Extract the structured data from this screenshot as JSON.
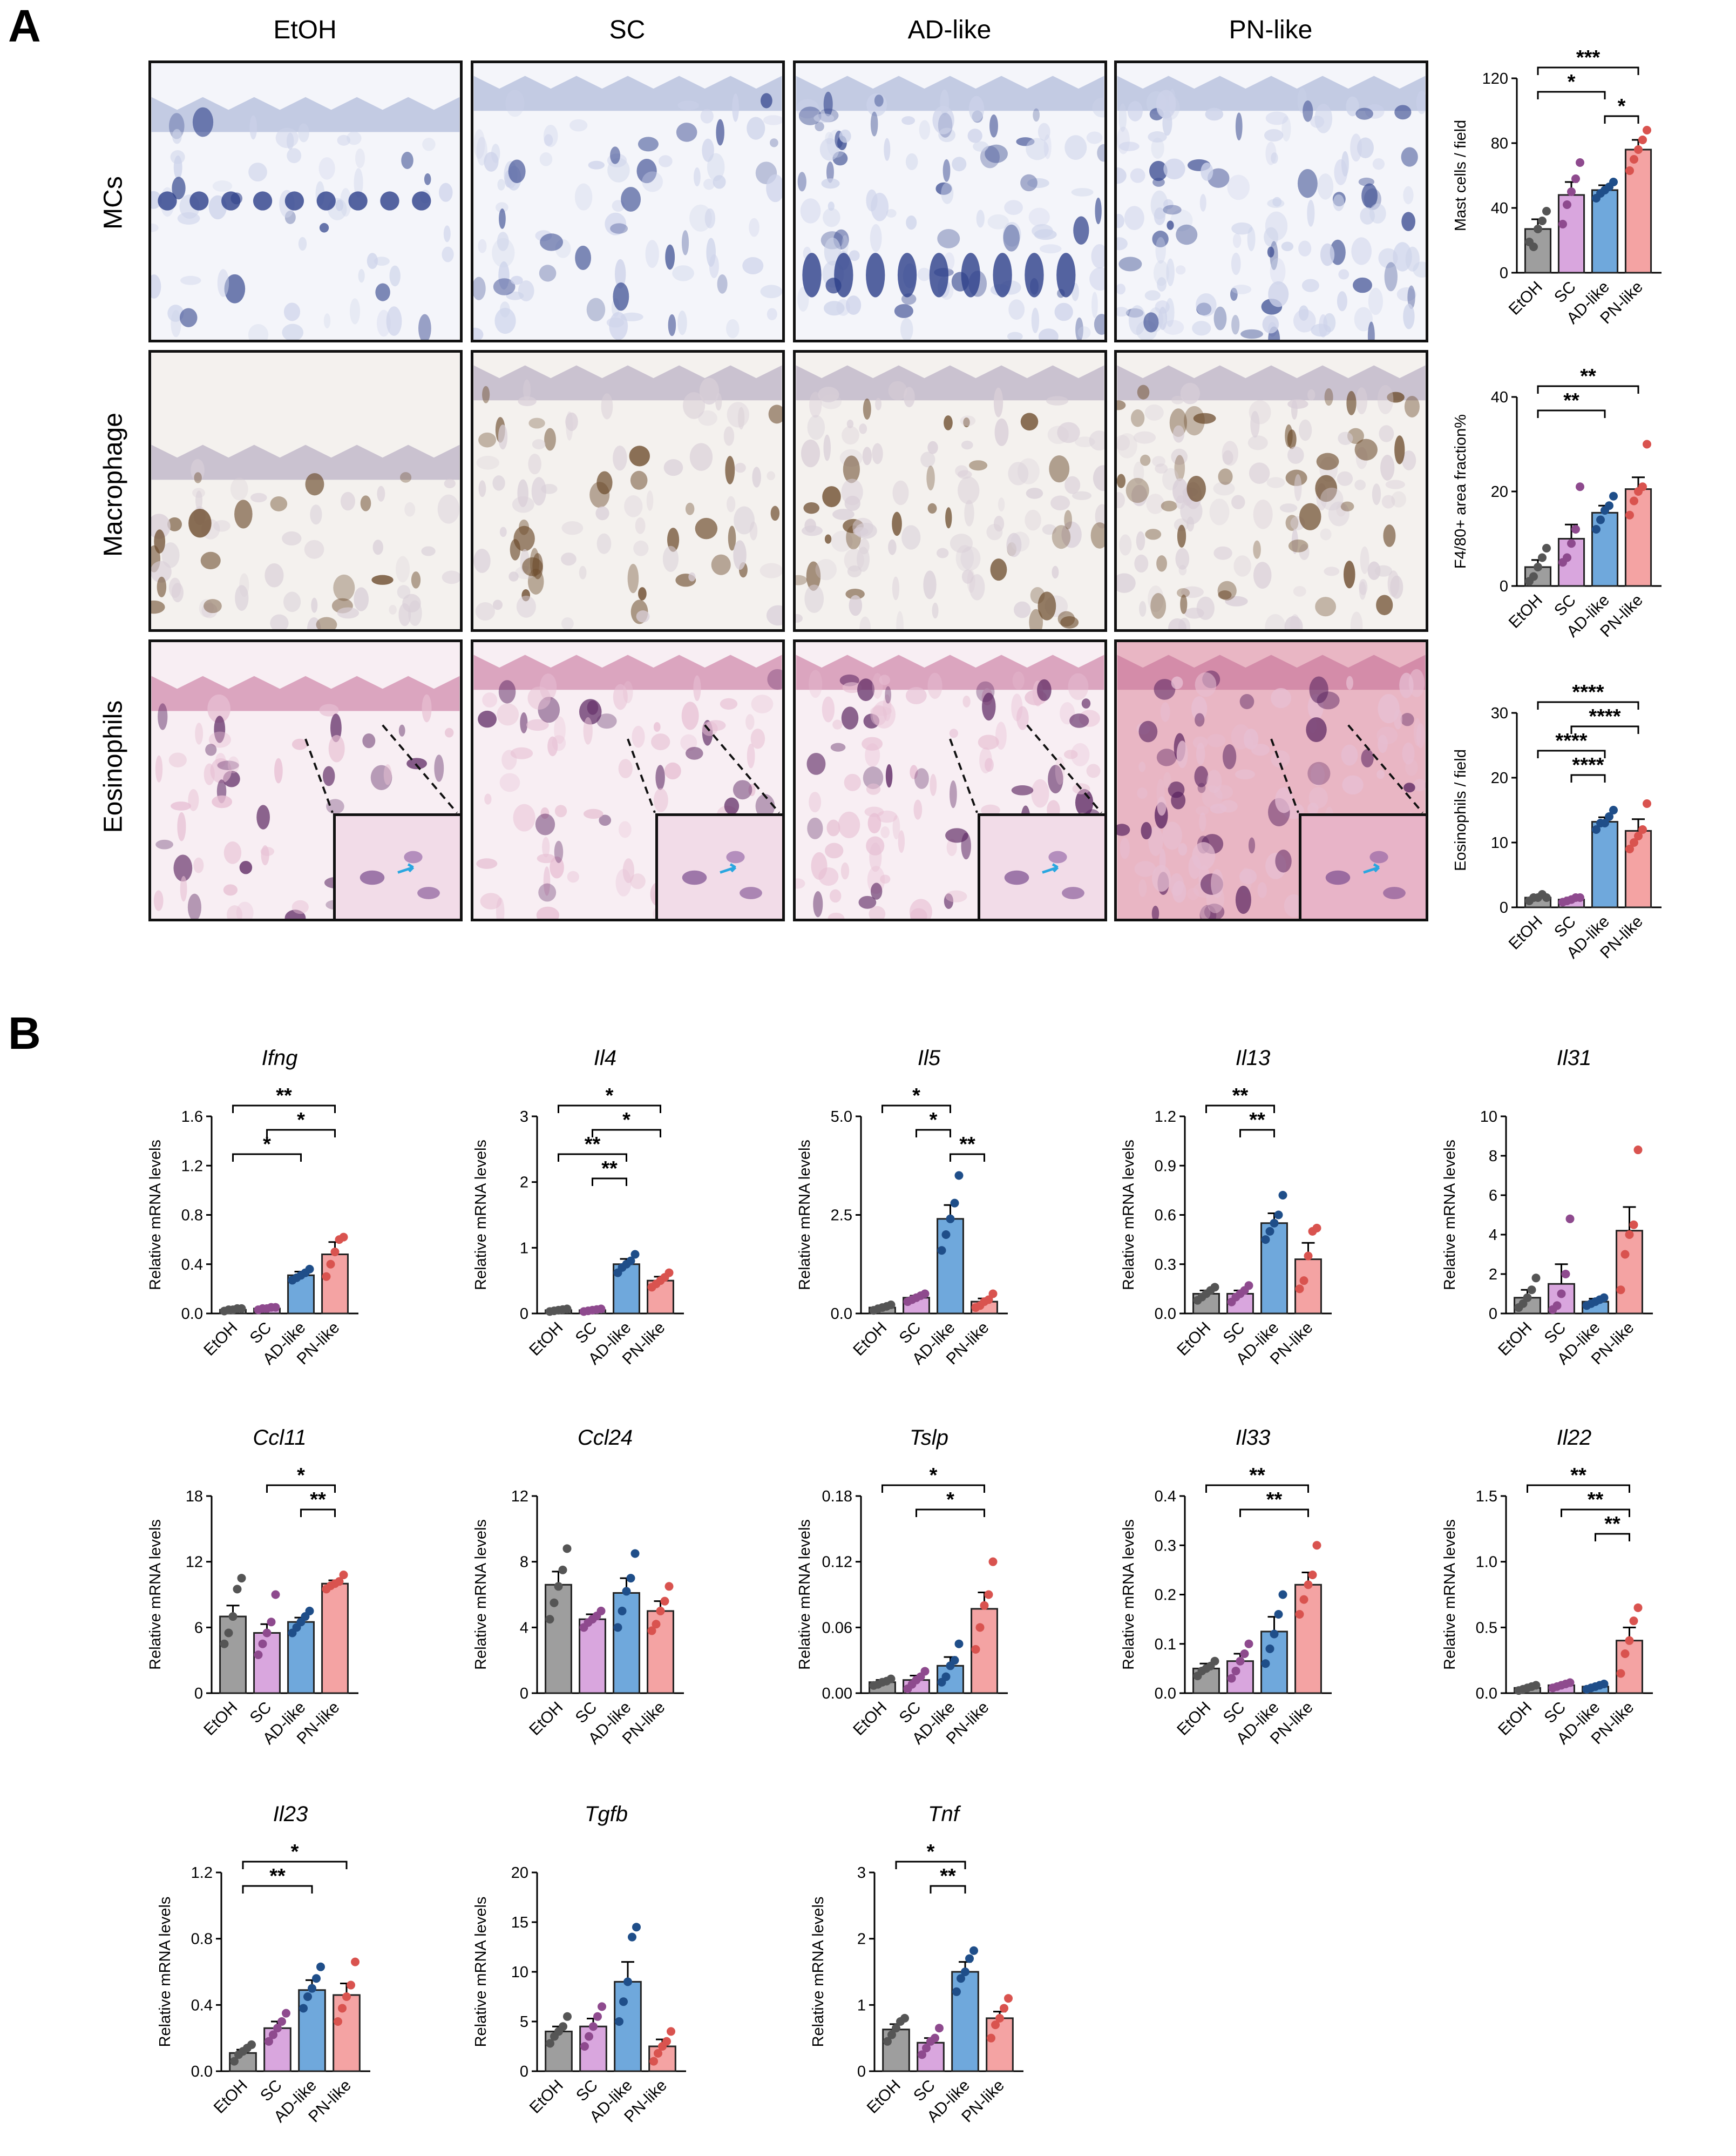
{
  "panels": {
    "A_label": "A",
    "B_label": "B"
  },
  "histology": {
    "columns": [
      "EtOH",
      "SC",
      "AD-like",
      "PN-like"
    ],
    "rows": [
      "MCs",
      "Macrophage",
      "Eosinophils"
    ]
  },
  "colors": {
    "EtOH": "#9e9e9e",
    "SC": "#d9a6de",
    "AD-like": "#6fa8dc",
    "PN-like": "#f4a3a3",
    "EtOH_dot": "#555555",
    "SC_dot": "#8e4a8e",
    "AD-like_dot": "#1f4e89",
    "PN-like_dot": "#d9534f"
  },
  "chart_data": [
    {
      "id": "mc",
      "type": "bar",
      "ylabel": "Mast cells / field",
      "ylim": [
        0,
        120
      ],
      "yticks": [
        "0",
        "40",
        "80",
        "120"
      ],
      "categories": [
        "EtOH",
        "SC",
        "AD-like",
        "PN-like"
      ],
      "values": [
        27,
        48,
        51,
        76
      ],
      "sem": [
        6,
        8,
        3,
        6
      ],
      "points": [
        [
          19,
          16,
          27,
          32,
          38
        ],
        [
          30,
          42,
          50,
          58,
          68
        ],
        [
          46,
          49,
          51,
          53,
          56
        ],
        [
          63,
          70,
          76,
          82,
          88
        ]
      ],
      "sig": [
        {
          "a": 0,
          "b": 3,
          "label": "***"
        },
        {
          "a": 0,
          "b": 2,
          "label": "*"
        },
        {
          "a": 2,
          "b": 3,
          "label": "*"
        }
      ]
    },
    {
      "id": "f480",
      "type": "bar",
      "ylabel": "F4/80+ area fraction%",
      "ylim": [
        0,
        40
      ],
      "yticks": [
        "0",
        "20",
        "40"
      ],
      "categories": [
        "EtOH",
        "SC",
        "AD-like",
        "PN-like"
      ],
      "values": [
        4,
        10,
        15.5,
        20.5
      ],
      "sem": [
        1.5,
        3,
        1.5,
        2.5
      ],
      "points": [
        [
          1,
          2,
          4,
          6,
          8
        ],
        [
          5,
          6,
          9,
          12,
          21
        ],
        [
          12,
          14,
          16,
          17,
          19
        ],
        [
          15,
          18,
          20,
          21,
          30
        ]
      ],
      "sig": [
        {
          "a": 0,
          "b": 3,
          "label": "**"
        },
        {
          "a": 0,
          "b": 2,
          "label": "**"
        }
      ]
    },
    {
      "id": "eos",
      "type": "bar",
      "ylabel": "Eosinophils / field",
      "ylim": [
        0,
        30
      ],
      "yticks": [
        "0",
        "10",
        "20",
        "30"
      ],
      "categories": [
        "EtOH",
        "SC",
        "AD-like",
        "PN-like"
      ],
      "values": [
        1.5,
        1.2,
        13.2,
        11.8
      ],
      "sem": [
        0.3,
        0.3,
        0.7,
        1.8
      ],
      "points": [
        [
          1,
          1.5,
          1.5,
          2,
          1.5
        ],
        [
          0.8,
          1,
          1.2,
          1.5,
          1.5
        ],
        [
          12,
          13,
          13,
          14,
          15
        ],
        [
          9,
          10,
          11,
          12,
          16
        ]
      ],
      "sig": [
        {
          "a": 0,
          "b": 3,
          "label": "****"
        },
        {
          "a": 1,
          "b": 3,
          "label": "****"
        },
        {
          "a": 0,
          "b": 2,
          "label": "****"
        },
        {
          "a": 1,
          "b": 2,
          "label": "****"
        }
      ]
    },
    {
      "id": "ifng",
      "type": "bar",
      "title": "Ifng",
      "ylabel": "Relative mRNA levels",
      "ylim": [
        0,
        1.6
      ],
      "yticks": [
        "0.0",
        "0.4",
        "0.8",
        "1.2",
        "1.6"
      ],
      "categories": [
        "EtOH",
        "SC",
        "AD-like",
        "PN-like"
      ],
      "values": [
        0.03,
        0.04,
        0.31,
        0.48
      ],
      "sem": [
        0.01,
        0.01,
        0.03,
        0.1
      ],
      "points": [
        [
          0.02,
          0.03,
          0.03,
          0.04,
          0.04
        ],
        [
          0.03,
          0.04,
          0.04,
          0.05,
          0.05
        ],
        [
          0.27,
          0.29,
          0.31,
          0.33,
          0.36
        ],
        [
          0.3,
          0.4,
          0.5,
          0.6,
          0.62
        ]
      ],
      "sig": [
        {
          "a": 0,
          "b": 3,
          "label": "**"
        },
        {
          "a": 1,
          "b": 3,
          "label": "*"
        },
        {
          "a": 0,
          "b": 2,
          "label": "*"
        }
      ]
    },
    {
      "id": "il4",
      "type": "bar",
      "title": "Il4",
      "ylabel": "Relative mRNA levels",
      "ylim": [
        0,
        3
      ],
      "yticks": [
        "0",
        "1",
        "2",
        "3"
      ],
      "categories": [
        "EtOH",
        "SC",
        "AD-like",
        "PN-like"
      ],
      "values": [
        0.05,
        0.05,
        0.75,
        0.5
      ],
      "sem": [
        0.02,
        0.02,
        0.08,
        0.06
      ],
      "points": [
        [
          0.03,
          0.04,
          0.05,
          0.06,
          0.07
        ],
        [
          0.03,
          0.04,
          0.05,
          0.06,
          0.07
        ],
        [
          0.62,
          0.7,
          0.75,
          0.8,
          0.9
        ],
        [
          0.4,
          0.45,
          0.5,
          0.55,
          0.62
        ]
      ],
      "sig": [
        {
          "a": 0,
          "b": 3,
          "label": "*"
        },
        {
          "a": 1,
          "b": 3,
          "label": "*"
        },
        {
          "a": 0,
          "b": 2,
          "label": "**"
        },
        {
          "a": 1,
          "b": 2,
          "label": "**"
        }
      ]
    },
    {
      "id": "il5",
      "type": "bar",
      "title": "Il5",
      "ylabel": "Relative mRNA levels",
      "ylim": [
        0,
        5
      ],
      "yticks": [
        "0.0",
        "2.5",
        "5.0"
      ],
      "categories": [
        "EtOH",
        "SC",
        "AD-like",
        "PN-like"
      ],
      "values": [
        0.15,
        0.4,
        2.4,
        0.3
      ],
      "sem": [
        0.05,
        0.05,
        0.35,
        0.08
      ],
      "points": [
        [
          0.08,
          0.12,
          0.15,
          0.18,
          0.22
        ],
        [
          0.3,
          0.35,
          0.4,
          0.45,
          0.5
        ],
        [
          1.6,
          2.0,
          2.4,
          2.8,
          3.5
        ],
        [
          0.15,
          0.2,
          0.3,
          0.35,
          0.5
        ]
      ],
      "sig": [
        {
          "a": 0,
          "b": 2,
          "label": "*"
        },
        {
          "a": 1,
          "b": 2,
          "label": "*"
        },
        {
          "a": 2,
          "b": 3,
          "label": "**"
        }
      ]
    },
    {
      "id": "il13",
      "type": "bar",
      "title": "Il13",
      "ylabel": "Relative mRNA levels",
      "ylim": [
        0,
        1.2
      ],
      "yticks": [
        "0.0",
        "0.3",
        "0.6",
        "0.9",
        "1.2"
      ],
      "categories": [
        "EtOH",
        "SC",
        "AD-like",
        "PN-like"
      ],
      "values": [
        0.12,
        0.12,
        0.55,
        0.33
      ],
      "sem": [
        0.02,
        0.02,
        0.06,
        0.1
      ],
      "points": [
        [
          0.08,
          0.1,
          0.12,
          0.14,
          0.16
        ],
        [
          0.07,
          0.1,
          0.12,
          0.14,
          0.17
        ],
        [
          0.45,
          0.5,
          0.55,
          0.6,
          0.72
        ],
        [
          0.15,
          0.2,
          0.35,
          0.5,
          0.52
        ]
      ],
      "sig": [
        {
          "a": 0,
          "b": 2,
          "label": "**"
        },
        {
          "a": 1,
          "b": 2,
          "label": "**"
        }
      ]
    },
    {
      "id": "il31",
      "type": "bar",
      "title": "Il31",
      "ylabel": "Relative mRNA levels",
      "ylim": [
        0,
        10
      ],
      "yticks": [
        "0",
        "2",
        "4",
        "6",
        "8",
        "10"
      ],
      "categories": [
        "EtOH",
        "SC",
        "AD-like",
        "PN-like"
      ],
      "values": [
        0.8,
        1.5,
        0.6,
        4.2
      ],
      "sem": [
        0.4,
        1.0,
        0.15,
        1.2
      ],
      "points": [
        [
          0.3,
          0.5,
          0.8,
          1.2,
          1.8
        ],
        [
          0.2,
          0.4,
          1.0,
          2.0,
          4.8
        ],
        [
          0.4,
          0.5,
          0.6,
          0.7,
          0.8
        ],
        [
          1.2,
          3.0,
          4.0,
          4.5,
          8.3
        ]
      ],
      "sig": []
    },
    {
      "id": "ccl11",
      "type": "bar",
      "title": "Ccl11",
      "ylabel": "Relative mRNA levels",
      "ylim": [
        0,
        18
      ],
      "yticks": [
        "0",
        "6",
        "12",
        "18"
      ],
      "categories": [
        "EtOH",
        "SC",
        "AD-like",
        "PN-like"
      ],
      "values": [
        7,
        5.5,
        6.5,
        10
      ],
      "sem": [
        1.0,
        0.8,
        0.4,
        0.3
      ],
      "points": [
        [
          4.5,
          5.5,
          7,
          9.5,
          10.5
        ],
        [
          3.5,
          4.5,
          5.5,
          6.5,
          9
        ],
        [
          5.5,
          6,
          6.5,
          7,
          7.5
        ],
        [
          9.5,
          9.8,
          10,
          10.2,
          10.8
        ]
      ],
      "sig": [
        {
          "a": 1,
          "b": 3,
          "label": "*"
        },
        {
          "a": 2,
          "b": 3,
          "label": "**"
        }
      ]
    },
    {
      "id": "ccl24",
      "type": "bar",
      "title": "Ccl24",
      "ylabel": "Relative mRNA levels",
      "ylim": [
        0,
        12
      ],
      "yticks": [
        "0",
        "4",
        "8",
        "12"
      ],
      "categories": [
        "EtOH",
        "SC",
        "AD-like",
        "PN-like"
      ],
      "values": [
        6.6,
        4.5,
        6.1,
        5.0
      ],
      "sem": [
        0.8,
        0.3,
        0.9,
        0.6
      ],
      "points": [
        [
          4.5,
          5.5,
          6.5,
          7.5,
          8.8
        ],
        [
          4.0,
          4.3,
          4.5,
          4.7,
          5.0
        ],
        [
          4.0,
          5.0,
          6.2,
          7.0,
          8.5
        ],
        [
          3.8,
          4.2,
          5.0,
          5.6,
          6.5
        ]
      ],
      "sig": []
    },
    {
      "id": "tslp",
      "type": "bar",
      "title": "Tslp",
      "ylabel": "Relative mRNA levels",
      "ylim": [
        0,
        0.18
      ],
      "yticks": [
        "0.00",
        "0.06",
        "0.12",
        "0.18"
      ],
      "categories": [
        "EtOH",
        "SC",
        "AD-like",
        "PN-like"
      ],
      "values": [
        0.01,
        0.012,
        0.025,
        0.077
      ],
      "sem": [
        0.002,
        0.004,
        0.008,
        0.015
      ],
      "points": [
        [
          0.007,
          0.008,
          0.01,
          0.011,
          0.013
        ],
        [
          0.004,
          0.008,
          0.012,
          0.015,
          0.02
        ],
        [
          0.01,
          0.015,
          0.025,
          0.03,
          0.045
        ],
        [
          0.04,
          0.06,
          0.08,
          0.09,
          0.12
        ]
      ],
      "sig": [
        {
          "a": 0,
          "b": 3,
          "label": "*"
        },
        {
          "a": 1,
          "b": 3,
          "label": "*"
        }
      ]
    },
    {
      "id": "il33",
      "type": "bar",
      "title": "Il33",
      "ylabel": "Relative mRNA levels",
      "ylim": [
        0,
        0.4
      ],
      "yticks": [
        "0.0",
        "0.1",
        "0.2",
        "0.3",
        "0.4"
      ],
      "categories": [
        "EtOH",
        "SC",
        "AD-like",
        "PN-like"
      ],
      "values": [
        0.05,
        0.065,
        0.125,
        0.22
      ],
      "sem": [
        0.01,
        0.015,
        0.03,
        0.025
      ],
      "points": [
        [
          0.035,
          0.045,
          0.05,
          0.055,
          0.065
        ],
        [
          0.03,
          0.045,
          0.065,
          0.08,
          0.1
        ],
        [
          0.06,
          0.09,
          0.12,
          0.16,
          0.2
        ],
        [
          0.16,
          0.19,
          0.22,
          0.24,
          0.3
        ]
      ],
      "sig": [
        {
          "a": 0,
          "b": 3,
          "label": "**"
        },
        {
          "a": 1,
          "b": 3,
          "label": "**"
        }
      ]
    },
    {
      "id": "il22",
      "type": "bar",
      "title": "Il22",
      "ylabel": "Relative mRNA levels",
      "ylim": [
        0,
        1.5
      ],
      "yticks": [
        "0.0",
        "0.5",
        "1.0",
        "1.5"
      ],
      "categories": [
        "EtOH",
        "SC",
        "AD-like",
        "PN-like"
      ],
      "values": [
        0.04,
        0.06,
        0.05,
        0.4
      ],
      "sem": [
        0.01,
        0.01,
        0.01,
        0.1
      ],
      "points": [
        [
          0.02,
          0.03,
          0.04,
          0.05,
          0.06
        ],
        [
          0.04,
          0.05,
          0.06,
          0.07,
          0.08
        ],
        [
          0.03,
          0.04,
          0.05,
          0.06,
          0.07
        ],
        [
          0.15,
          0.3,
          0.4,
          0.55,
          0.65
        ]
      ],
      "sig": [
        {
          "a": 0,
          "b": 3,
          "label": "**"
        },
        {
          "a": 1,
          "b": 3,
          "label": "**"
        },
        {
          "a": 2,
          "b": 3,
          "label": "**"
        }
      ]
    },
    {
      "id": "il23",
      "type": "bar",
      "title": "Il23",
      "ylabel": "Relative mRNA levels",
      "ylim": [
        0,
        1.2
      ],
      "yticks": [
        "0.0",
        "0.4",
        "0.8",
        "1.2"
      ],
      "categories": [
        "EtOH",
        "SC",
        "AD-like",
        "PN-like"
      ],
      "values": [
        0.11,
        0.26,
        0.49,
        0.46
      ],
      "sem": [
        0.02,
        0.04,
        0.06,
        0.07
      ],
      "points": [
        [
          0.06,
          0.1,
          0.12,
          0.14,
          0.16
        ],
        [
          0.18,
          0.22,
          0.26,
          0.3,
          0.35
        ],
        [
          0.38,
          0.45,
          0.5,
          0.56,
          0.63
        ],
        [
          0.3,
          0.38,
          0.45,
          0.52,
          0.66
        ]
      ],
      "sig": [
        {
          "a": 0,
          "b": 3,
          "label": "*"
        },
        {
          "a": 0,
          "b": 2,
          "label": "**"
        }
      ]
    },
    {
      "id": "tgfb",
      "type": "bar",
      "title": "Tgfb",
      "ylabel": "Relative mRNA levels",
      "ylim": [
        0,
        20
      ],
      "yticks": [
        "0",
        "5",
        "10",
        "15",
        "20"
      ],
      "categories": [
        "EtOH",
        "SC",
        "AD-like",
        "PN-like"
      ],
      "values": [
        4,
        4.5,
        9,
        2.5
      ],
      "sem": [
        0.5,
        0.8,
        2.0,
        0.7
      ],
      "points": [
        [
          2.8,
          3.5,
          4,
          4.5,
          5.5
        ],
        [
          2.5,
          3.5,
          4.5,
          5.5,
          6.5
        ],
        [
          5,
          7,
          9,
          13.5,
          14.5
        ],
        [
          1,
          1.8,
          2.5,
          3,
          4
        ]
      ],
      "sig": []
    },
    {
      "id": "tnf",
      "type": "bar",
      "title": "Tnf",
      "ylabel": "Relative mRNA levels",
      "ylim": [
        0,
        3
      ],
      "yticks": [
        "0",
        "1",
        "2",
        "3"
      ],
      "categories": [
        "EtOH",
        "SC",
        "AD-like",
        "PN-like"
      ],
      "values": [
        0.63,
        0.43,
        1.5,
        0.8
      ],
      "sem": [
        0.08,
        0.07,
        0.15,
        0.1
      ],
      "points": [
        [
          0.45,
          0.55,
          0.65,
          0.75,
          0.8
        ],
        [
          0.25,
          0.35,
          0.45,
          0.5,
          0.65
        ],
        [
          1.2,
          1.4,
          1.5,
          1.7,
          1.82
        ],
        [
          0.5,
          0.7,
          0.8,
          0.95,
          1.1
        ]
      ],
      "sig": [
        {
          "a": 0,
          "b": 2,
          "label": "*"
        },
        {
          "a": 1,
          "b": 2,
          "label": "**"
        }
      ]
    }
  ]
}
